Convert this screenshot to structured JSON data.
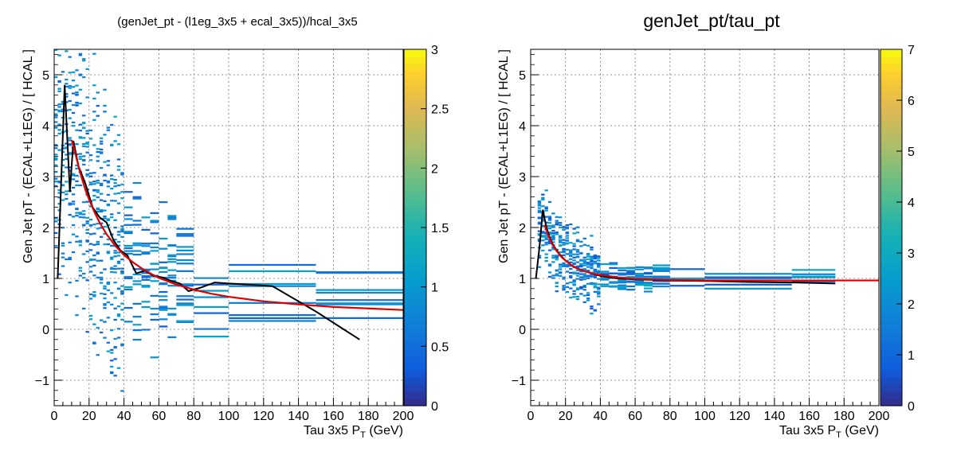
{
  "chart_data": [
    {
      "type": "heatmap",
      "title": "(genJet_pt - (l1eg_3x5 + ecal_3x5))/hcal_3x5",
      "xlabel_main": "Tau 3x5 P",
      "xlabel_sub": "T",
      "xlabel_unit": " (GeV)",
      "ylabel": "Gen Jet pT - (ECAL+L1EG) / [ HCAL ]",
      "xlim": [
        0,
        200
      ],
      "ylim": [
        -1.5,
        5.5
      ],
      "xticks": [
        "0",
        "20",
        "40",
        "60",
        "80",
        "100",
        "120",
        "140",
        "160",
        "180",
        "200"
      ],
      "yticks": [
        "−1",
        "0",
        "1",
        "2",
        "3",
        "4",
        "5"
      ],
      "zlim": [
        0,
        3
      ],
      "zticks": [
        "0",
        "0.5",
        "1",
        "1.5",
        "2",
        "2.5",
        "3"
      ],
      "grid": true,
      "profile_line": {
        "color": "#000000",
        "x": [
          2,
          6,
          9,
          11,
          14,
          18,
          22,
          26,
          30,
          34,
          38,
          42,
          47,
          52,
          57,
          62,
          67,
          72,
          77,
          84,
          92,
          100,
          110,
          125,
          150,
          175
        ],
        "y": [
          1.0,
          4.8,
          2.7,
          3.7,
          3.2,
          2.85,
          2.4,
          2.2,
          2.1,
          1.75,
          1.55,
          1.45,
          1.1,
          1.15,
          1.05,
          1.02,
          0.95,
          0.9,
          0.75,
          0.82,
          0.92,
          0.9,
          0.88,
          0.85,
          0.35,
          -0.2
        ]
      },
      "fit_curve": {
        "color": "#e00000",
        "x": [
          10,
          12,
          14,
          16,
          18,
          20,
          23,
          26,
          30,
          35,
          40,
          45,
          50,
          55,
          60,
          70,
          80,
          90,
          100,
          120,
          140,
          160,
          180,
          200
        ],
        "y": [
          3.72,
          3.47,
          3.19,
          2.95,
          2.73,
          2.55,
          2.31,
          2.1,
          1.87,
          1.64,
          1.46,
          1.32,
          1.2,
          1.1,
          1.01,
          0.88,
          0.78,
          0.7,
          0.64,
          0.55,
          0.49,
          0.44,
          0.41,
          0.38
        ]
      }
    },
    {
      "type": "heatmap",
      "title": "genJet_pt/tau_pt",
      "xlabel_main": "Tau 3x5 P",
      "xlabel_sub": "T",
      "xlabel_unit": " (GeV)",
      "ylabel": "Gen Jet pT - (ECAL+L1EG) / [ HCAL ]",
      "xlim": [
        0,
        200
      ],
      "ylim": [
        -1.5,
        5.5
      ],
      "xticks": [
        "0",
        "20",
        "40",
        "60",
        "80",
        "100",
        "120",
        "140",
        "160",
        "180",
        "200"
      ],
      "yticks": [
        "−1",
        "0",
        "1",
        "2",
        "3",
        "4",
        "5"
      ],
      "zlim": [
        0,
        7
      ],
      "zticks": [
        "0",
        "1",
        "2",
        "3",
        "4",
        "5",
        "6",
        "7"
      ],
      "grid": true,
      "profile_line": {
        "color": "#000000",
        "x": [
          3,
          5,
          7,
          9,
          11,
          13,
          16,
          20,
          25,
          30,
          40,
          50,
          60,
          80,
          100,
          125,
          150,
          175
        ],
        "y": [
          1.0,
          1.6,
          2.35,
          2.0,
          1.8,
          1.65,
          1.5,
          1.35,
          1.22,
          1.15,
          1.05,
          1.0,
          0.98,
          0.96,
          0.95,
          0.93,
          0.92,
          0.9
        ]
      },
      "fit_curve": {
        "color": "#e00000",
        "x": [
          8,
          10,
          12,
          14,
          16,
          18,
          20,
          23,
          26,
          30,
          35,
          40,
          50,
          60,
          80,
          100,
          120,
          140,
          160,
          180,
          200
        ],
        "y": [
          2.05,
          1.85,
          1.7,
          1.58,
          1.49,
          1.41,
          1.35,
          1.27,
          1.21,
          1.15,
          1.1,
          1.07,
          1.02,
          0.99,
          0.97,
          0.96,
          0.96,
          0.96,
          0.96,
          0.96,
          0.96
        ]
      }
    }
  ]
}
